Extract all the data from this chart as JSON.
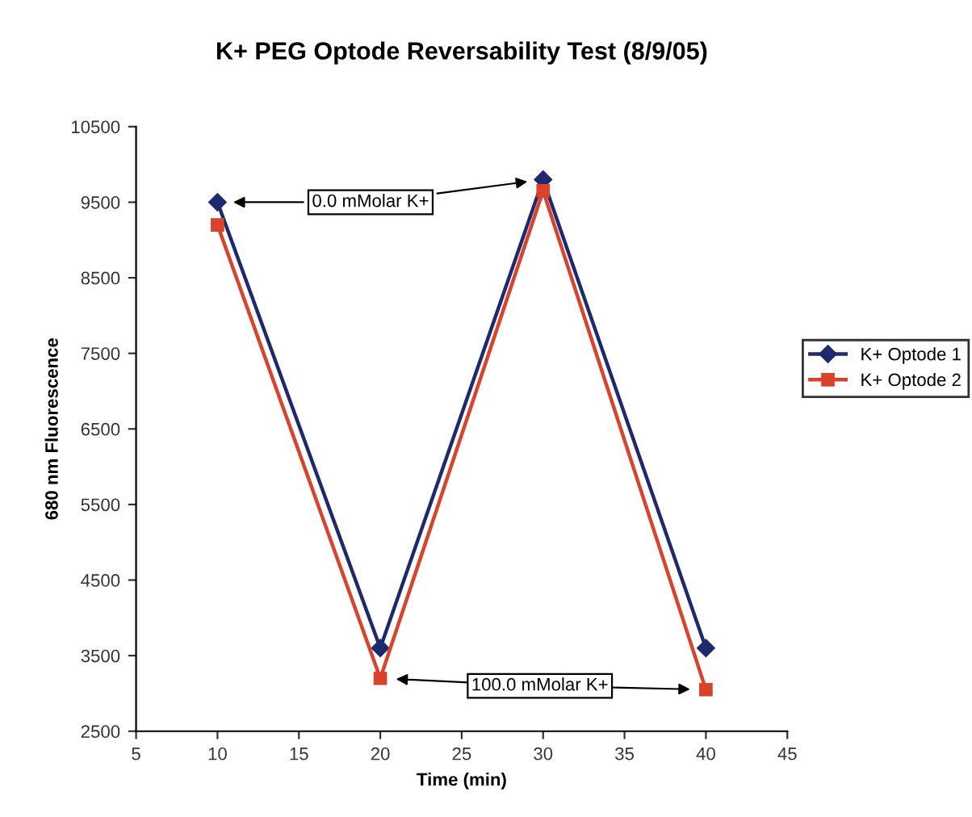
{
  "chart_data": {
    "type": "line",
    "title": "K+ PEG Optode Reversability Test (8/9/05)",
    "xlabel": "Time (min)",
    "ylabel": "680 nm Fluorescence",
    "x": [
      10,
      20,
      30,
      40
    ],
    "series": [
      {
        "name": "K+ Optode 1",
        "color": "#1f2a6e",
        "marker": "diamond",
        "values": [
          9500,
          3600,
          9800,
          3600
        ]
      },
      {
        "name": "K+ Optode 2",
        "color": "#d9422b",
        "marker": "square",
        "values": [
          9200,
          3200,
          9650,
          3050
        ]
      }
    ],
    "xlim": [
      5,
      45
    ],
    "xticks": [
      5,
      10,
      15,
      20,
      25,
      30,
      35,
      40,
      45
    ],
    "ylim": [
      2500,
      10500
    ],
    "yticks": [
      2500,
      3500,
      4500,
      5500,
      6500,
      7500,
      8500,
      9500,
      10500
    ],
    "annotations": [
      "0.0 mMolar K+",
      "100.0 mMolar K+"
    ],
    "grid": false,
    "legend": "right",
    "line_style": "solid"
  }
}
